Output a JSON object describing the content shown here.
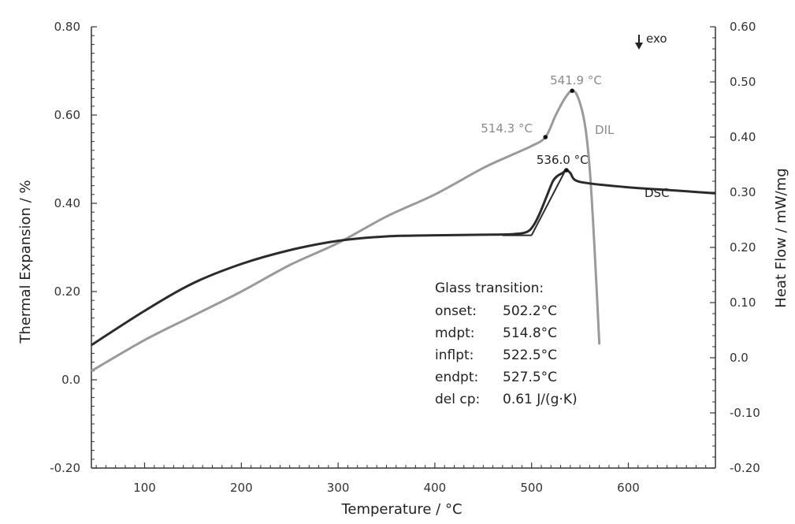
{
  "chart_data": {
    "type": "line",
    "xlabel": "Temperature / °C",
    "ylabel_left": "Thermal Expansion / %",
    "ylabel_right": "Heat Flow / mW/mg",
    "xlim": [
      45,
      690
    ],
    "ylim_left": [
      -0.2,
      0.8
    ],
    "ylim_right": [
      -0.2,
      0.6
    ],
    "x_ticks": [
      "100",
      "200",
      "300",
      "400",
      "500",
      "600"
    ],
    "y_left_ticks": [
      "-0.20",
      "0.0",
      "0.20",
      "0.40",
      "0.60",
      "0.80"
    ],
    "y_right_ticks": [
      "-0.20",
      "-0.10",
      "0.0",
      "0.10",
      "0.20",
      "0.30",
      "0.40",
      "0.50",
      "0.60"
    ],
    "exo_label": "exo",
    "colors": {
      "dil": "#9a9a9a",
      "dsc": "#2b2b2b",
      "axis": "#333333"
    },
    "series": [
      {
        "name": "DIL",
        "axis": "left",
        "x": [
          45,
          100,
          150,
          200,
          250,
          300,
          350,
          400,
          450,
          480,
          500,
          514.3,
          525,
          535,
          541.9,
          548,
          555,
          560,
          565,
          570
        ],
        "y": [
          0.02,
          0.09,
          0.145,
          0.2,
          0.26,
          0.31,
          0.37,
          0.42,
          0.48,
          0.51,
          0.53,
          0.55,
          0.6,
          0.64,
          0.655,
          0.64,
          0.58,
          0.48,
          0.3,
          0.08
        ]
      },
      {
        "name": "DSC",
        "axis": "right",
        "x": [
          45,
          100,
          150,
          200,
          250,
          300,
          350,
          400,
          450,
          480,
          495,
          502,
          508,
          515,
          522,
          527,
          532,
          536,
          540,
          545,
          560,
          600,
          650,
          690
        ],
        "y": [
          0.023,
          0.085,
          0.135,
          0.17,
          0.195,
          0.212,
          0.22,
          0.222,
          0.223,
          0.224,
          0.228,
          0.24,
          0.26,
          0.29,
          0.32,
          0.33,
          0.335,
          0.34,
          0.335,
          0.322,
          0.316,
          0.309,
          0.303,
          0.298
        ]
      }
    ],
    "annotations": [
      {
        "text": "514.3 °C",
        "series": "DIL",
        "x": 514.3,
        "y": 0.55
      },
      {
        "text": "541.9 °C",
        "series": "DIL",
        "x": 541.9,
        "y": 0.655
      },
      {
        "text": "536.0 °C",
        "series": "DSC",
        "x": 536,
        "y": 0.34
      }
    ],
    "series_labels": [
      "DIL",
      "DSC"
    ],
    "glass_transition": {
      "title": "Glass transition:",
      "rows": [
        {
          "label": "onset:",
          "value": "502.2°C"
        },
        {
          "label": "mdpt:",
          "value": "514.8°C"
        },
        {
          "label": "inflpt:",
          "value": "522.5°C"
        },
        {
          "label": "endpt:",
          "value": "527.5°C"
        },
        {
          "label": "del cp:",
          "value": "0.61 J/(g·K)"
        }
      ]
    }
  }
}
